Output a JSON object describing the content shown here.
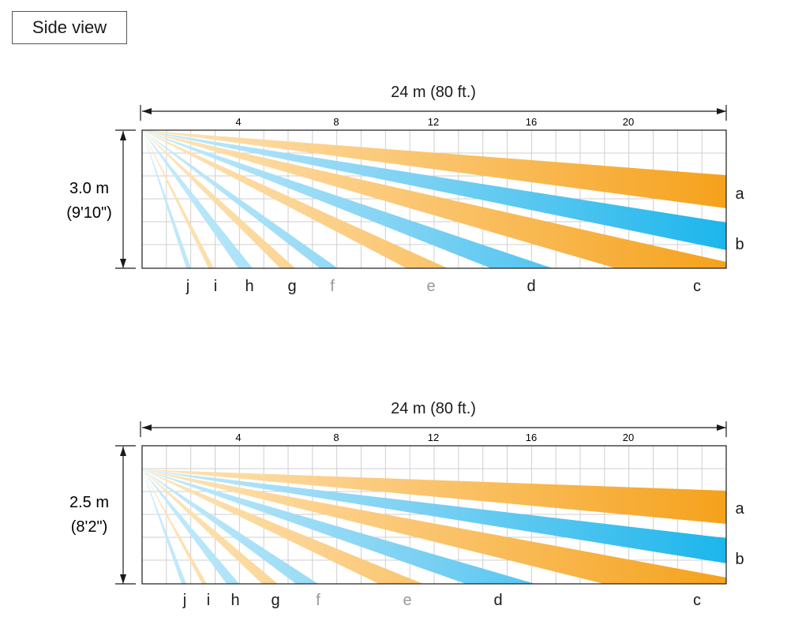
{
  "view_title": "Side view",
  "colors": {
    "orange": "#f5a21c",
    "orange_light": "#fde6bd",
    "blue": "#1cb6ec",
    "blue_light": "#c9ecfb",
    "grid": "#c8c8c8",
    "label": "#1a1a1a",
    "label_gray": "#999999"
  },
  "diagrams": [
    {
      "range_label": "24 m (80 ft.)",
      "ticks": [
        "4",
        "8",
        "12",
        "16",
        "20"
      ],
      "height_label": "3.0 m",
      "height_label_imperial": "(9'10\")",
      "beam_letters": [
        "j",
        "i",
        "h",
        "g",
        "f",
        "e",
        "d",
        "c",
        "a",
        "b"
      ]
    },
    {
      "range_label": "24 m (80 ft.)",
      "ticks": [
        "4",
        "8",
        "12",
        "16",
        "20"
      ],
      "height_label": "2.5 m",
      "height_label_imperial": "(8'2\")",
      "beam_letters": [
        "j",
        "i",
        "h",
        "g",
        "f",
        "e",
        "d",
        "c",
        "a",
        "b"
      ]
    }
  ]
}
